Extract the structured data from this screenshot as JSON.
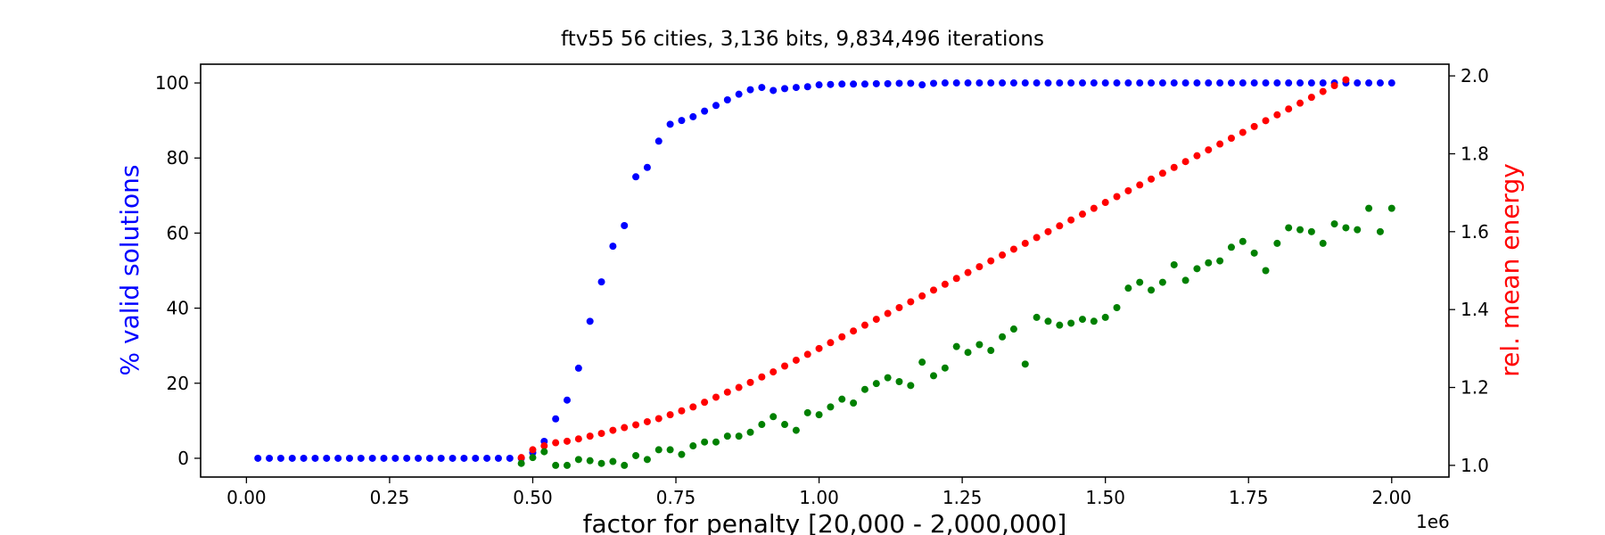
{
  "chart_data": {
    "type": "scatter",
    "title": "ftv55 56 cities, 3,136 bits, 9,834,496 iterations",
    "xlabel": "factor for penalty [20,000 - 2,000,000]",
    "ylabel_left": "% valid solutions",
    "ylabel_right": "rel. mean energy",
    "x_offset_label": "1e6",
    "xlim": [
      -0.08,
      2.1
    ],
    "ylim_left": [
      -5,
      105
    ],
    "ylim_right": [
      0.97,
      2.03
    ],
    "x_ticks": [
      0.0,
      0.25,
      0.5,
      0.75,
      1.0,
      1.25,
      1.5,
      1.75,
      2.0
    ],
    "x_tick_labels": [
      "0.00",
      "0.25",
      "0.50",
      "0.75",
      "1.00",
      "1.25",
      "1.50",
      "1.75",
      "2.00"
    ],
    "y_left_ticks": [
      0,
      20,
      40,
      60,
      80,
      100
    ],
    "y_left_tick_labels": [
      "0",
      "20",
      "40",
      "60",
      "80",
      "100"
    ],
    "y_right_ticks": [
      1.0,
      1.2,
      1.4,
      1.6,
      1.8,
      2.0
    ],
    "y_right_tick_labels": [
      "1.0",
      "1.2",
      "1.4",
      "1.6",
      "1.8",
      "2.0"
    ],
    "grid": false,
    "colors": {
      "left_axis": "#0000ff",
      "right_axis": "#ff0000"
    },
    "series": [
      {
        "axis": "left",
        "color": "#0000ff",
        "x": [
          0.02,
          0.04,
          0.06,
          0.08,
          0.1,
          0.12,
          0.14,
          0.16,
          0.18,
          0.2,
          0.22,
          0.24,
          0.26,
          0.28,
          0.3,
          0.32,
          0.34,
          0.36,
          0.38,
          0.4,
          0.42,
          0.44,
          0.46,
          0.48,
          0.5,
          0.52,
          0.54,
          0.56,
          0.58,
          0.6,
          0.62,
          0.64,
          0.66,
          0.68,
          0.7,
          0.72,
          0.74,
          0.76,
          0.78,
          0.8,
          0.82,
          0.84,
          0.86,
          0.88,
          0.9,
          0.92,
          0.94,
          0.96,
          0.98,
          1.0,
          1.02,
          1.04,
          1.06,
          1.08,
          1.1,
          1.12,
          1.14,
          1.16,
          1.18,
          1.2,
          1.22,
          1.24,
          1.26,
          1.28,
          1.3,
          1.32,
          1.34,
          1.36,
          1.38,
          1.4,
          1.42,
          1.44,
          1.46,
          1.48,
          1.5,
          1.52,
          1.54,
          1.56,
          1.58,
          1.6,
          1.62,
          1.64,
          1.66,
          1.68,
          1.7,
          1.72,
          1.74,
          1.76,
          1.78,
          1.8,
          1.82,
          1.84,
          1.86,
          1.88,
          1.9,
          1.92,
          1.94,
          1.96,
          1.98,
          2.0
        ],
        "y": [
          0,
          0,
          0,
          0,
          0,
          0,
          0,
          0,
          0,
          0,
          0,
          0,
          0,
          0,
          0,
          0,
          0,
          0,
          0,
          0,
          0,
          0,
          0,
          0,
          1.5,
          4.5,
          10.5,
          15.5,
          24,
          36.5,
          47,
          56.5,
          62,
          75,
          77.5,
          84.5,
          89,
          90,
          91,
          92.5,
          94,
          95.5,
          97,
          98.2,
          98.8,
          98,
          98.5,
          98.8,
          99,
          99.5,
          99.6,
          99.7,
          99.7,
          99.7,
          99.8,
          99.8,
          99.9,
          99.9,
          99.5,
          99.9,
          100,
          100,
          100,
          100,
          100,
          100,
          100,
          100,
          100,
          100,
          100,
          100,
          100,
          100,
          100,
          100,
          100,
          100,
          100,
          100,
          100,
          100,
          100,
          100,
          100,
          100,
          100,
          100,
          100,
          100,
          100,
          100,
          100,
          100,
          100,
          100,
          100,
          100,
          100,
          100
        ]
      },
      {
        "axis": "right",
        "color": "#ff0000",
        "x": [
          0.48,
          0.5,
          0.52,
          0.54,
          0.56,
          0.58,
          0.6,
          0.62,
          0.64,
          0.66,
          0.68,
          0.7,
          0.72,
          0.74,
          0.76,
          0.78,
          0.8,
          0.82,
          0.84,
          0.86,
          0.88,
          0.9,
          0.92,
          0.94,
          0.96,
          0.98,
          1.0,
          1.02,
          1.04,
          1.06,
          1.08,
          1.1,
          1.12,
          1.14,
          1.16,
          1.18,
          1.2,
          1.22,
          1.24,
          1.26,
          1.28,
          1.3,
          1.32,
          1.34,
          1.36,
          1.38,
          1.4,
          1.42,
          1.44,
          1.46,
          1.48,
          1.5,
          1.52,
          1.54,
          1.56,
          1.58,
          1.6,
          1.62,
          1.64,
          1.66,
          1.68,
          1.7,
          1.72,
          1.74,
          1.76,
          1.78,
          1.8,
          1.82,
          1.84,
          1.86,
          1.88,
          1.9,
          1.92
        ],
        "y": [
          1.02,
          1.04,
          1.05,
          1.058,
          1.062,
          1.068,
          1.075,
          1.082,
          1.09,
          1.097,
          1.104,
          1.112,
          1.12,
          1.13,
          1.14,
          1.15,
          1.162,
          1.175,
          1.188,
          1.2,
          1.213,
          1.227,
          1.24,
          1.255,
          1.27,
          1.285,
          1.3,
          1.315,
          1.33,
          1.345,
          1.36,
          1.375,
          1.39,
          1.405,
          1.42,
          1.435,
          1.45,
          1.465,
          1.48,
          1.495,
          1.51,
          1.525,
          1.54,
          1.555,
          1.57,
          1.585,
          1.6,
          1.615,
          1.63,
          1.645,
          1.66,
          1.675,
          1.69,
          1.705,
          1.72,
          1.735,
          1.75,
          1.765,
          1.78,
          1.795,
          1.81,
          1.825,
          1.84,
          1.855,
          1.87,
          1.885,
          1.9,
          1.915,
          1.93,
          1.945,
          1.96,
          1.975,
          1.99
        ]
      },
      {
        "axis": "right",
        "color": "#008000",
        "x": [
          0.48,
          0.5,
          0.52,
          0.54,
          0.56,
          0.58,
          0.6,
          0.62,
          0.64,
          0.66,
          0.68,
          0.7,
          0.72,
          0.74,
          0.76,
          0.78,
          0.8,
          0.82,
          0.84,
          0.86,
          0.88,
          0.9,
          0.92,
          0.94,
          0.96,
          0.98,
          1.0,
          1.02,
          1.04,
          1.06,
          1.08,
          1.1,
          1.12,
          1.14,
          1.16,
          1.18,
          1.2,
          1.22,
          1.24,
          1.26,
          1.28,
          1.3,
          1.32,
          1.34,
          1.36,
          1.38,
          1.4,
          1.42,
          1.44,
          1.46,
          1.48,
          1.5,
          1.52,
          1.54,
          1.56,
          1.58,
          1.6,
          1.62,
          1.64,
          1.66,
          1.68,
          1.7,
          1.72,
          1.74,
          1.76,
          1.78,
          1.8,
          1.82,
          1.84,
          1.86,
          1.88,
          1.9,
          1.92,
          1.94,
          1.96,
          1.98,
          2.0
        ],
        "y": [
          1.005,
          1.02,
          1.035,
          1.0,
          1.0,
          1.015,
          1.012,
          1.005,
          1.01,
          1.0,
          1.025,
          1.015,
          1.04,
          1.04,
          1.028,
          1.05,
          1.06,
          1.06,
          1.075,
          1.075,
          1.085,
          1.105,
          1.125,
          1.105,
          1.09,
          1.135,
          1.13,
          1.15,
          1.17,
          1.16,
          1.195,
          1.21,
          1.225,
          1.215,
          1.205,
          1.265,
          1.23,
          1.25,
          1.305,
          1.29,
          1.31,
          1.295,
          1.33,
          1.35,
          1.26,
          1.38,
          1.37,
          1.36,
          1.365,
          1.375,
          1.37,
          1.38,
          1.405,
          1.455,
          1.47,
          1.45,
          1.47,
          1.515,
          1.475,
          1.505,
          1.52,
          1.525,
          1.56,
          1.575,
          1.545,
          1.5,
          1.57,
          1.61,
          1.605,
          1.6,
          1.57,
          1.62,
          1.61,
          1.605,
          1.66,
          1.6,
          1.66
        ]
      }
    ]
  }
}
